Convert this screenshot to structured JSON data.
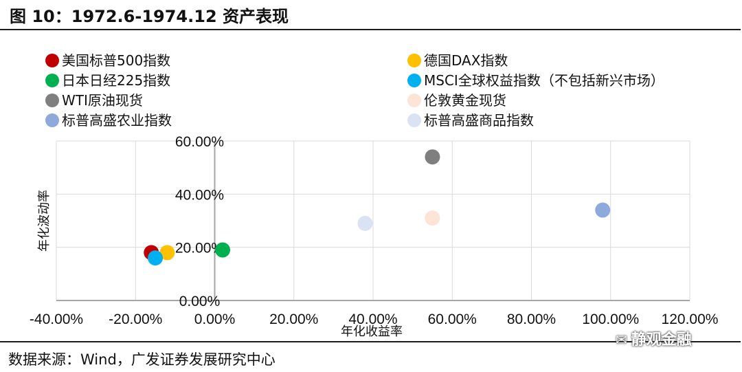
{
  "header": {
    "title": "图 10：1972.6-1974.12 资产表现"
  },
  "footer": {
    "source_label": "数据来源：",
    "source_value": "Wind，广发证券发展研究中心",
    "watermark": "静观金融"
  },
  "chart_data": {
    "type": "scatter",
    "title": "",
    "xlabel": "年化收益率",
    "ylabel": "年化波动率",
    "xlim": [
      -40,
      120
    ],
    "ylim": [
      0,
      60
    ],
    "x_ticks": [
      "-40.00%",
      "-20.00%",
      "0.00%",
      "20.00%",
      "40.00%",
      "60.00%",
      "80.00%",
      "100.00%",
      "120.00%"
    ],
    "y_ticks": [
      "0.00%",
      "20.00%",
      "40.00%",
      "60.00%"
    ],
    "grid": true,
    "legend_position": "top",
    "series": [
      {
        "name": "美国标普500指数",
        "color": "#c00000",
        "x": -16,
        "y": 18
      },
      {
        "name": "德国DAX指数",
        "color": "#ffc000",
        "x": -12,
        "y": 18
      },
      {
        "name": "日本日经225指数",
        "color": "#00b050",
        "x": 2,
        "y": 19
      },
      {
        "name": "MSCI全球权益指数（不包括新兴市场）",
        "color": "#00b0f0",
        "x": -15,
        "y": 16
      },
      {
        "name": "WTI原油现货",
        "color": "#7f7f7f",
        "x": 55,
        "y": 54
      },
      {
        "name": "伦敦黄金现货",
        "color": "#fce4d6",
        "x": 55,
        "y": 31
      },
      {
        "name": "标普高盛农业指数",
        "color": "#8ea9db",
        "x": 98,
        "y": 34
      },
      {
        "name": "标普高盛商品指数",
        "color": "#dae3f3",
        "x": 38,
        "y": 29
      }
    ]
  }
}
